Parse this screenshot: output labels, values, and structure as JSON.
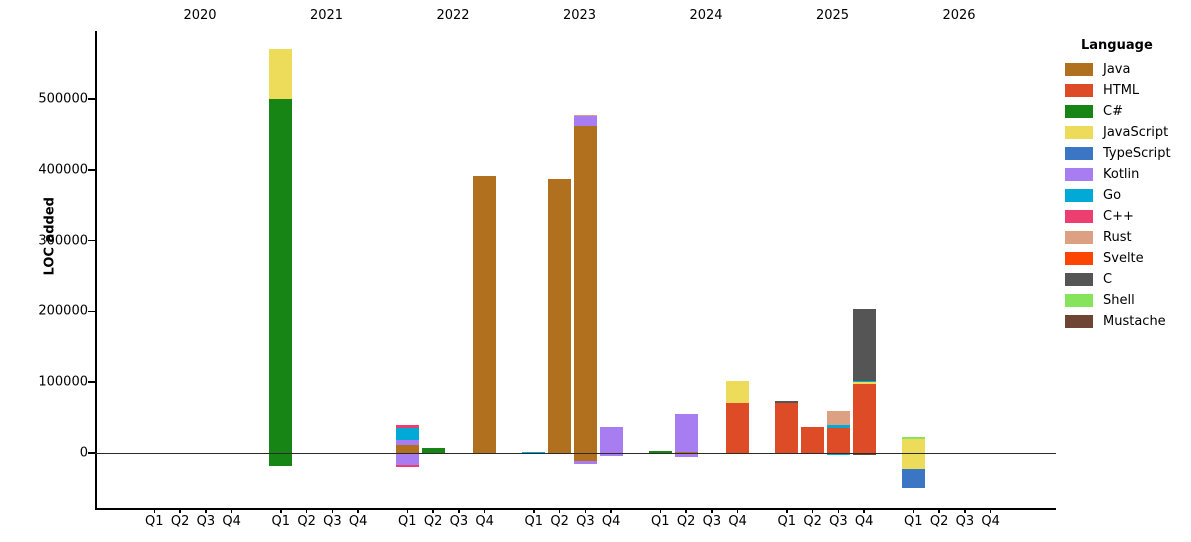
{
  "chart_data": {
    "type": "bar",
    "stacked": true,
    "title": "",
    "ylabel": "LOC added",
    "xlabel": "",
    "legend_title": "Language",
    "legend_position": "right",
    "grid": false,
    "ylim": [
      -77000,
      596000
    ],
    "yticks": [
      0,
      100000,
      200000,
      300000,
      400000,
      500000
    ],
    "ytick_labels": [
      "0",
      "100000",
      "200000",
      "300000",
      "400000",
      "500000"
    ],
    "quarter_labels": [
      "Q1",
      "Q2",
      "Q3",
      "Q4"
    ],
    "zero_line_color": "#2b2b2b",
    "languages": [
      {
        "name": "Java",
        "color": "#b1701d"
      },
      {
        "name": "HTML",
        "color": "#dd4b27"
      },
      {
        "name": "C#",
        "color": "#168516"
      },
      {
        "name": "JavaScript",
        "color": "#ecdc5a"
      },
      {
        "name": "TypeScript",
        "color": "#3b76c5"
      },
      {
        "name": "Kotlin",
        "color": "#a97df2"
      },
      {
        "name": "Go",
        "color": "#00a9d6"
      },
      {
        "name": "C++",
        "color": "#ec3e71"
      },
      {
        "name": "Rust",
        "color": "#dca183"
      },
      {
        "name": "Svelte",
        "color": "#fd4503"
      },
      {
        "name": "C",
        "color": "#555555"
      },
      {
        "name": "Shell",
        "color": "#86e35c"
      },
      {
        "name": "Mustache",
        "color": "#6e4434"
      }
    ],
    "years": [
      {
        "year": "2020",
        "quarters": [
          {
            "label": "Q1",
            "segments": []
          },
          {
            "label": "Q2",
            "segments": []
          },
          {
            "label": "Q3",
            "segments": []
          },
          {
            "label": "Q4",
            "segments": []
          }
        ]
      },
      {
        "year": "2021",
        "quarters": [
          {
            "label": "Q1",
            "segments": [
              {
                "lang": "C#",
                "value": 500000
              },
              {
                "lang": "JavaScript",
                "value": 70000
              },
              {
                "lang": "C#",
                "value": -18000
              }
            ]
          },
          {
            "label": "Q2",
            "segments": []
          },
          {
            "label": "Q3",
            "segments": []
          },
          {
            "label": "Q4",
            "segments": []
          }
        ]
      },
      {
        "year": "2022",
        "quarters": [
          {
            "label": "Q1",
            "segments": [
              {
                "lang": "Java",
                "value": 11000
              },
              {
                "lang": "Kotlin",
                "value": 8000
              },
              {
                "lang": "Go",
                "value": 17000
              },
              {
                "lang": "C++",
                "value": 4000
              },
              {
                "lang": "Kotlin",
                "value": -17000
              },
              {
                "lang": "C++",
                "value": -3000
              }
            ]
          },
          {
            "label": "Q2",
            "segments": [
              {
                "lang": "C#",
                "value": 7000
              }
            ]
          },
          {
            "label": "Q3",
            "segments": []
          },
          {
            "label": "Q4",
            "segments": [
              {
                "lang": "Java",
                "value": 391000
              }
            ]
          }
        ]
      },
      {
        "year": "2023",
        "quarters": [
          {
            "label": "Q1",
            "segments": [
              {
                "lang": "Go",
                "value": 2000
              }
            ]
          },
          {
            "label": "Q2",
            "segments": [
              {
                "lang": "Java",
                "value": 387000
              }
            ]
          },
          {
            "label": "Q3",
            "segments": [
              {
                "lang": "Java",
                "value": 462000
              },
              {
                "lang": "Kotlin",
                "value": 14000
              },
              {
                "lang": "Rust",
                "value": 2000
              },
              {
                "lang": "Java",
                "value": -12000
              },
              {
                "lang": "Kotlin",
                "value": -4000
              }
            ]
          },
          {
            "label": "Q4",
            "segments": [
              {
                "lang": "Kotlin",
                "value": 37000
              },
              {
                "lang": "Kotlin",
                "value": -4000
              }
            ]
          }
        ]
      },
      {
        "year": "2024",
        "quarters": [
          {
            "label": "Q1",
            "segments": [
              {
                "lang": "C#",
                "value": 3000
              }
            ]
          },
          {
            "label": "Q2",
            "segments": [
              {
                "lang": "Java",
                "value": 2000
              },
              {
                "lang": "Kotlin",
                "value": 53000
              },
              {
                "lang": "Kotlin",
                "value": -5000
              }
            ]
          },
          {
            "label": "Q3",
            "segments": []
          },
          {
            "label": "Q4",
            "segments": [
              {
                "lang": "HTML",
                "value": 70000
              },
              {
                "lang": "JavaScript",
                "value": 32000
              }
            ]
          }
        ]
      },
      {
        "year": "2025",
        "quarters": [
          {
            "label": "Q1",
            "segments": [
              {
                "lang": "HTML",
                "value": 71000
              },
              {
                "lang": "C",
                "value": 2500
              }
            ]
          },
          {
            "label": "Q2",
            "segments": [
              {
                "lang": "HTML",
                "value": 37000
              }
            ]
          },
          {
            "label": "Q3",
            "segments": [
              {
                "lang": "HTML",
                "value": 35000
              },
              {
                "lang": "Go",
                "value": 5000
              },
              {
                "lang": "Rust",
                "value": 19000
              },
              {
                "lang": "Go",
                "value": -3000
              }
            ]
          },
          {
            "label": "Q4",
            "segments": [
              {
                "lang": "HTML",
                "value": 97000
              },
              {
                "lang": "JavaScript",
                "value": 3000
              },
              {
                "lang": "Go",
                "value": 2000
              },
              {
                "lang": "C",
                "value": 102000
              },
              {
                "lang": "Mustache",
                "value": -2500
              }
            ]
          }
        ]
      },
      {
        "year": "2026",
        "quarters": [
          {
            "label": "Q1",
            "segments": [
              {
                "lang": "JavaScript",
                "value": 20000
              },
              {
                "lang": "Shell",
                "value": 2500
              },
              {
                "lang": "JavaScript",
                "value": -23000
              },
              {
                "lang": "TypeScript",
                "value": -26000
              }
            ]
          },
          {
            "label": "Q2",
            "segments": []
          },
          {
            "label": "Q3",
            "segments": []
          },
          {
            "label": "Q4",
            "segments": []
          }
        ]
      }
    ]
  }
}
